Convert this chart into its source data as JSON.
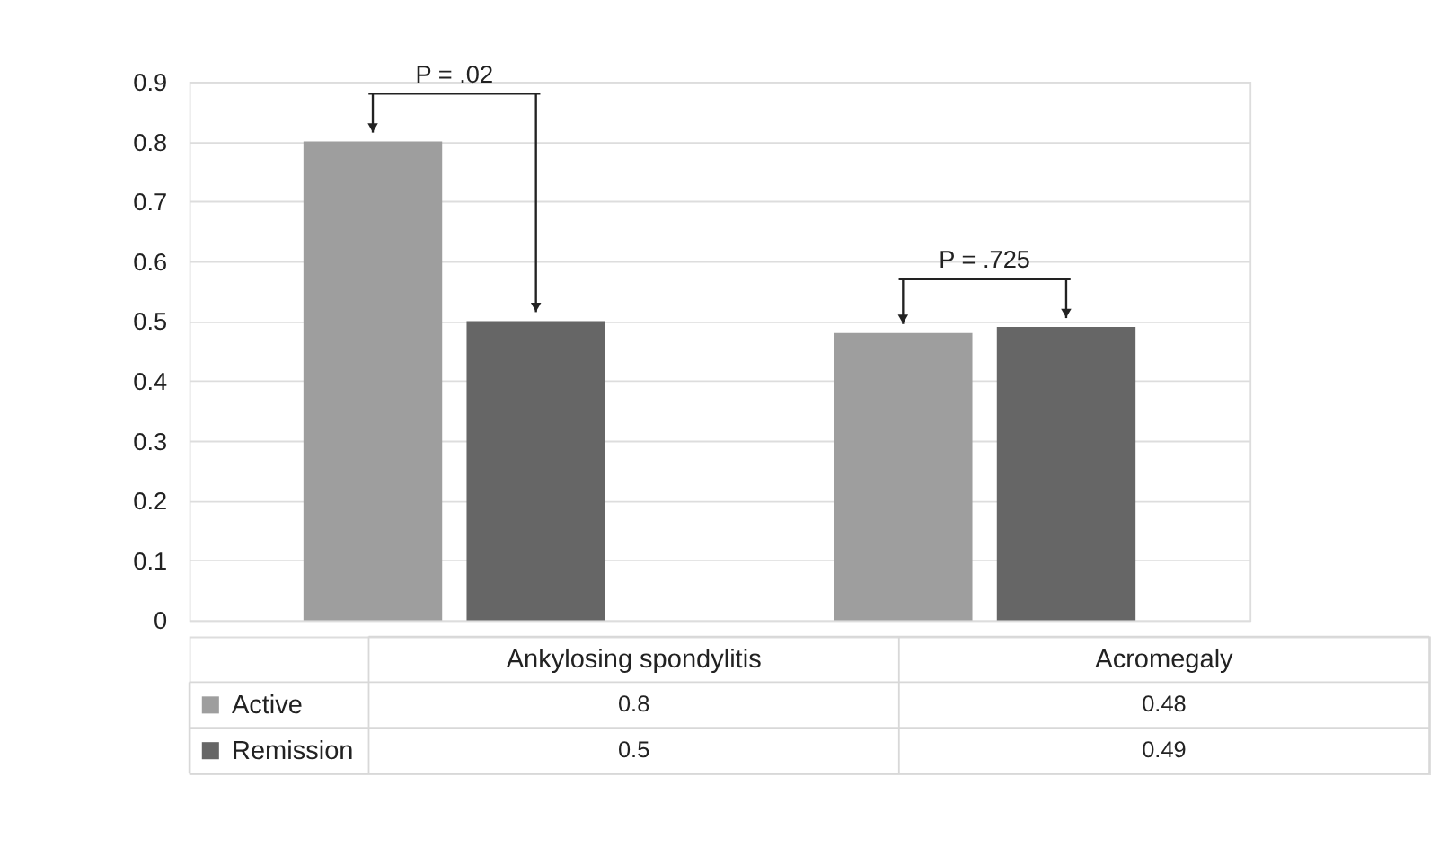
{
  "chart_data": {
    "type": "bar",
    "categories": [
      "Ankylosing spondylitis",
      "Acromegaly"
    ],
    "series": [
      {
        "name": "Active",
        "color": "#9e9e9e",
        "values": [
          0.8,
          0.48
        ]
      },
      {
        "name": "Remission",
        "color": "#666666",
        "values": [
          0.5,
          0.49
        ]
      }
    ],
    "ylim": [
      0,
      0.9
    ],
    "yticks": [
      0,
      0.1,
      0.2,
      0.3,
      0.4,
      0.5,
      0.6,
      0.7,
      0.8,
      0.9
    ],
    "grid": "y",
    "legend": "bottom left",
    "data_labels": true,
    "annotations": [
      "P = .02",
      "P = .725"
    ]
  }
}
